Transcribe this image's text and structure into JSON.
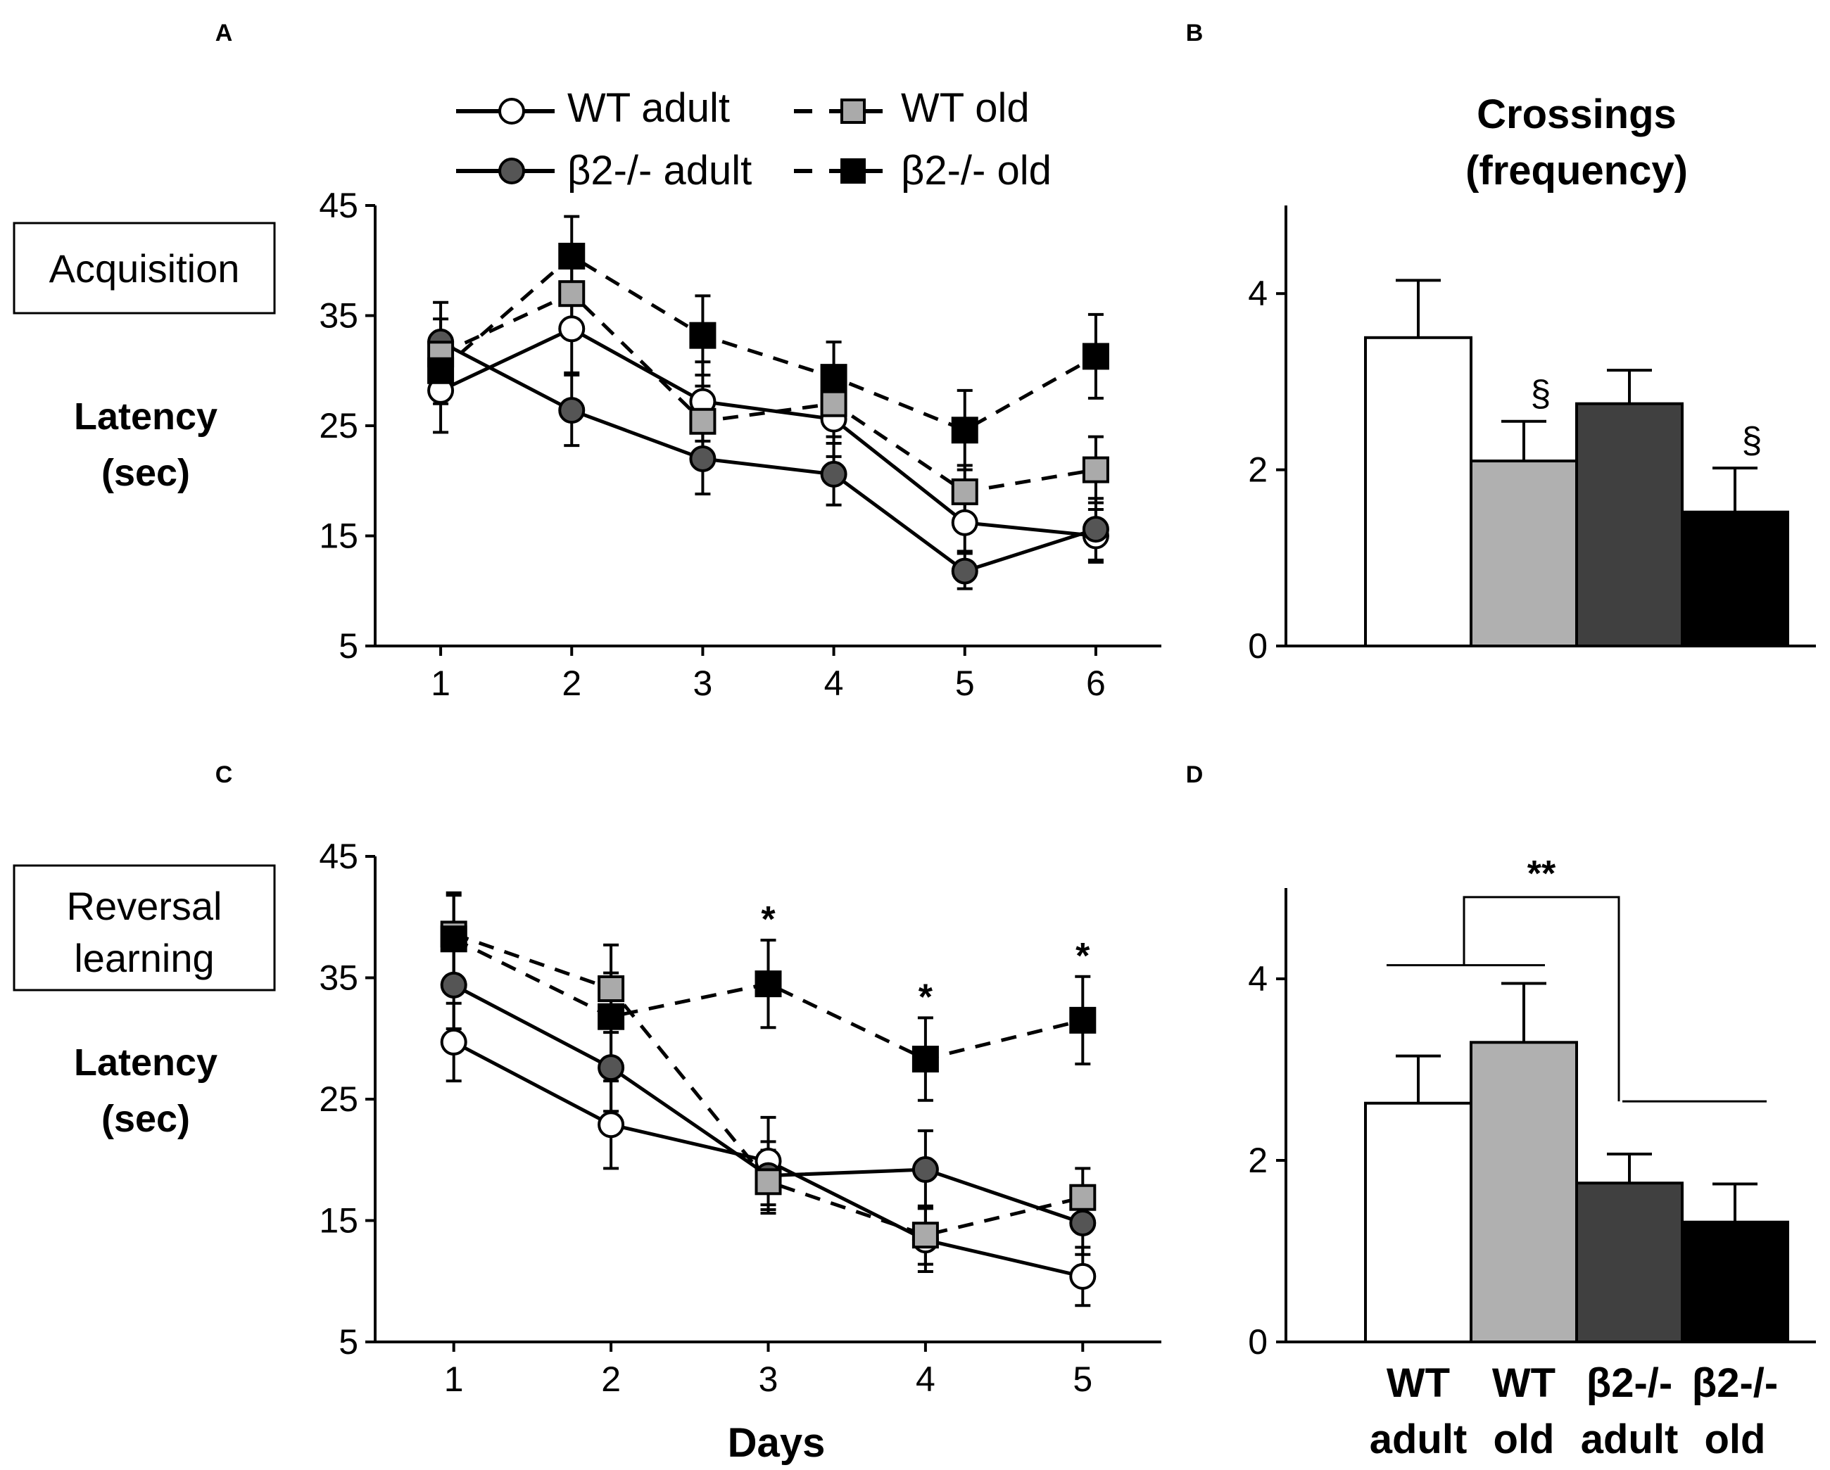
{
  "panels": {
    "A": "A",
    "B": "B",
    "C": "C",
    "D": "D"
  },
  "legend": {
    "wt_adult": "WT adult",
    "wt_old": "WT old",
    "b2_adult": "β2-/- adult",
    "b2_old": "β2-/- old"
  },
  "labels": {
    "acquisition": "Acquisition",
    "reversal_line1": "Reversal",
    "reversal_line2": "learning",
    "latency_line1": "Latency",
    "latency_line2": "(sec)",
    "crossings_line1": "Crossings",
    "crossings_line2": "(frequency)",
    "days": "Days"
  },
  "colors": {
    "wt_adult": "#ffffff",
    "wt_old": "#b0b0b0",
    "b2_adult": "#404040",
    "b2_old": "#000000",
    "b2_adult_marker": "#555555",
    "wt_old_marker": "#aaaaaa"
  },
  "chart_data": [
    {
      "id": "A",
      "type": "line",
      "title": "Acquisition",
      "xlabel": "",
      "ylabel": "Latency (sec)",
      "x": [
        1,
        2,
        3,
        4,
        5,
        6
      ],
      "xlim": [
        0.5,
        6.5
      ],
      "ylim": [
        5,
        45
      ],
      "yticks": [
        5,
        15,
        25,
        35,
        45
      ],
      "series": [
        {
          "name": "WT adult",
          "key": "wt_adult",
          "values": [
            28.2,
            33.8,
            27.2,
            25.6,
            16.2,
            15.0
          ],
          "err": [
            3.8,
            4.0,
            3.6,
            3.4,
            2.6,
            2.4
          ]
        },
        {
          "name": "WT old",
          "key": "wt_old",
          "values": [
            31.5,
            37.0,
            25.4,
            27.0,
            19.0,
            21.0
          ],
          "err": [
            3.2,
            3.4,
            3.2,
            3.0,
            2.4,
            3.0
          ]
        },
        {
          "name": "β2-/- adult",
          "key": "b2_adult",
          "values": [
            32.6,
            26.4,
            22.0,
            20.6,
            11.8,
            15.6
          ],
          "err": [
            3.6,
            3.2,
            3.2,
            2.8,
            1.6,
            2.8
          ]
        },
        {
          "name": "β2-/- old",
          "key": "b2_old",
          "values": [
            30.0,
            40.4,
            33.2,
            29.4,
            24.6,
            31.3
          ],
          "err": [
            3.0,
            3.6,
            3.6,
            3.2,
            3.6,
            3.8
          ]
        }
      ]
    },
    {
      "id": "B",
      "type": "bar",
      "title": "Crossings (frequency)",
      "categories": [
        "WT adult",
        "WT old",
        "β2-/- adult",
        "β2-/- old"
      ],
      "values": [
        3.5,
        2.1,
        2.75,
        1.52
      ],
      "err": [
        0.65,
        0.45,
        0.38,
        0.5
      ],
      "annotations": [
        "",
        "§",
        "",
        "§"
      ],
      "ylim": [
        0,
        5
      ],
      "yticks": [
        0,
        2,
        4
      ]
    },
    {
      "id": "C",
      "type": "line",
      "title": "Reversal learning",
      "xlabel": "Days",
      "ylabel": "Latency (sec)",
      "x": [
        1,
        2,
        3,
        4,
        5
      ],
      "xlim": [
        0.5,
        5.5
      ],
      "ylim": [
        5,
        45
      ],
      "yticks": [
        5,
        15,
        25,
        35,
        45
      ],
      "series": [
        {
          "name": "WT adult",
          "key": "wt_adult",
          "values": [
            29.7,
            22.9,
            19.9,
            13.4,
            10.4
          ],
          "err": [
            3.2,
            3.6,
            3.6,
            2.6,
            2.4
          ]
        },
        {
          "name": "WT old",
          "key": "wt_old",
          "values": [
            38.6,
            34.1,
            18.2,
            13.8,
            16.9
          ],
          "err": [
            3.4,
            3.6,
            2.6,
            2.4,
            2.4
          ]
        },
        {
          "name": "β2-/- adult",
          "key": "b2_adult",
          "values": [
            34.4,
            27.6,
            18.7,
            19.2,
            14.8
          ],
          "err": [
            3.6,
            3.6,
            2.8,
            3.2,
            2.6
          ]
        },
        {
          "name": "β2-/- old",
          "key": "b2_old",
          "values": [
            38.2,
            31.8,
            34.5,
            28.3,
            31.5
          ],
          "err": [
            3.6,
            3.6,
            3.6,
            3.4,
            3.6
          ]
        }
      ],
      "annotations": [
        {
          "x": 3,
          "text": "*"
        },
        {
          "x": 4,
          "text": "*"
        },
        {
          "x": 5,
          "text": "*"
        }
      ]
    },
    {
      "id": "D",
      "type": "bar",
      "title": "",
      "categories": [
        "WT adult",
        "WT old",
        "β2-/- adult",
        "β2-/- old"
      ],
      "category_lines": [
        [
          "WT",
          "adult"
        ],
        [
          "WT",
          "old"
        ],
        [
          "β2-/-",
          "adult"
        ],
        [
          "β2-/-",
          "old"
        ]
      ],
      "values": [
        2.63,
        3.3,
        1.75,
        1.32
      ],
      "err": [
        0.52,
        0.65,
        0.32,
        0.42
      ],
      "ylim": [
        0,
        5
      ],
      "yticks": [
        0,
        2,
        4
      ],
      "comparison": {
        "text": "**",
        "groups": [
          [
            "WT adult",
            "WT old"
          ],
          [
            "β2-/- adult",
            "β2-/- old"
          ]
        ]
      }
    }
  ]
}
